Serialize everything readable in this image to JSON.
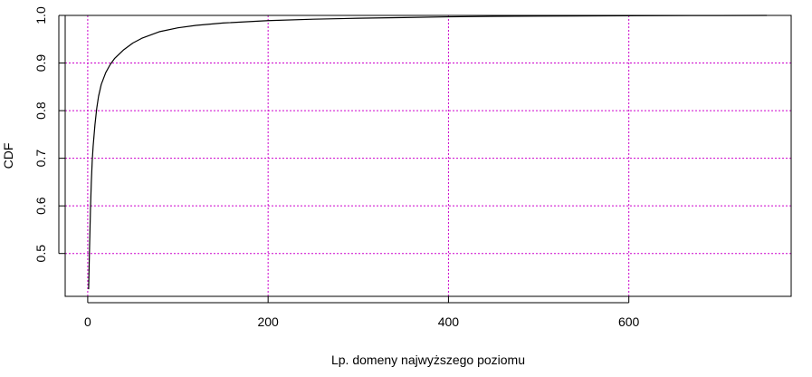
{
  "chart_data": {
    "type": "line",
    "title": "",
    "xlabel": "Lp. domeny najwyższego poziomu",
    "ylabel": "CDF",
    "xlim": [
      -25,
      780
    ],
    "ylim": [
      0.41,
      1.0
    ],
    "x_ticks": [
      0,
      200,
      400,
      600
    ],
    "x_tick_labels": [
      "0",
      "200",
      "400",
      "600"
    ],
    "y_ticks": [
      0.5,
      0.6,
      0.7,
      0.8,
      0.9,
      1.0
    ],
    "y_tick_labels": [
      "0.5",
      "0.6",
      "0.7",
      "0.8",
      "0.9",
      "1.0"
    ],
    "grid": true,
    "grid_color": "#cc00cc",
    "grid_style": "dotted",
    "line_color": "#000000",
    "series": [
      {
        "x": [
          1,
          2,
          3,
          4,
          5,
          6,
          8,
          10,
          12,
          15,
          20,
          25,
          30,
          40,
          50,
          60,
          80,
          100,
          120,
          150,
          200,
          250,
          300,
          350,
          400,
          450,
          500,
          600,
          700,
          753
        ],
        "y": [
          0.425,
          0.51,
          0.59,
          0.65,
          0.695,
          0.725,
          0.77,
          0.805,
          0.83,
          0.855,
          0.88,
          0.897,
          0.91,
          0.928,
          0.942,
          0.952,
          0.966,
          0.974,
          0.979,
          0.984,
          0.989,
          0.992,
          0.994,
          0.9955,
          0.997,
          0.998,
          0.9985,
          0.9993,
          0.9998,
          1.0
        ]
      }
    ]
  }
}
